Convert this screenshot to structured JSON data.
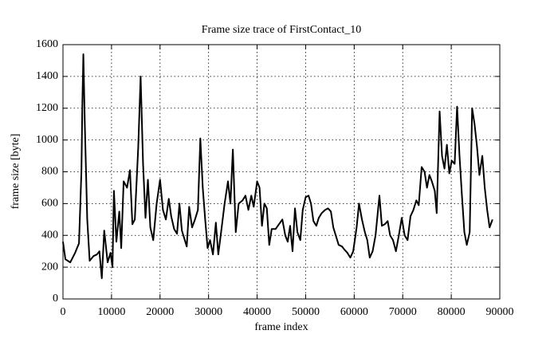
{
  "chart_data": {
    "type": "line",
    "title": "Frame size trace of FirstContact_10",
    "xlabel": "frame index",
    "ylabel": "frame size [byte]",
    "color": "#000000",
    "grid": true,
    "xlim": [
      0,
      90000
    ],
    "xticks": [
      0,
      10000,
      20000,
      30000,
      40000,
      50000,
      60000,
      70000,
      80000,
      90000
    ],
    "ylim": [
      0,
      1600
    ],
    "yticks": [
      0,
      200,
      400,
      600,
      800,
      1000,
      1200,
      1400,
      1600
    ],
    "x": [
      0,
      500,
      1500,
      2500,
      3300,
      3800,
      4000,
      4200,
      4500,
      5000,
      5500,
      6300,
      7000,
      7500,
      8000,
      8500,
      9200,
      9800,
      10200,
      10500,
      11000,
      11600,
      12000,
      12500,
      13200,
      13800,
      14300,
      14800,
      15500,
      16000,
      16500,
      17000,
      17500,
      18000,
      18600,
      19300,
      20000,
      20600,
      21200,
      21800,
      22300,
      22900,
      23500,
      24000,
      24500,
      25000,
      25500,
      26000,
      26600,
      27200,
      27800,
      28300,
      28800,
      29300,
      29800,
      30300,
      30900,
      31500,
      32000,
      32700,
      33300,
      34000,
      34500,
      35000,
      35600,
      36200,
      37000,
      37600,
      38200,
      38800,
      39300,
      40000,
      40500,
      41000,
      41500,
      42000,
      42500,
      43000,
      43800,
      44500,
      45200,
      45800,
      46300,
      46800,
      47300,
      47800,
      48300,
      48900,
      49400,
      50000,
      50600,
      51100,
      51600,
      52200,
      52700,
      53300,
      54000,
      54600,
      55200,
      55700,
      56200,
      56800,
      57500,
      58000,
      58600,
      59200,
      59800,
      60500,
      61000,
      61600,
      62200,
      62700,
      63200,
      63800,
      64400,
      65200,
      65700,
      66300,
      66900,
      67400,
      68000,
      68600,
      69200,
      69800,
      70400,
      71000,
      71600,
      72200,
      72800,
      73300,
      73900,
      74500,
      75000,
      75500,
      76000,
      76600,
      77000,
      77600,
      78100,
      78600,
      79100,
      79600,
      80100,
      80700,
      81200,
      81700,
      82200,
      82700,
      83200,
      83800,
      84300,
      84800,
      85300,
      85800,
      86400,
      86900,
      87400,
      87900,
      88500
    ],
    "values": [
      360,
      250,
      230,
      290,
      350,
      800,
      1240,
      1540,
      1100,
      500,
      240,
      270,
      280,
      300,
      130,
      430,
      230,
      290,
      200,
      680,
      360,
      550,
      320,
      740,
      700,
      810,
      470,
      500,
      950,
      1400,
      850,
      510,
      750,
      450,
      370,
      600,
      750,
      560,
      500,
      630,
      520,
      440,
      410,
      600,
      430,
      380,
      330,
      580,
      450,
      500,
      560,
      1010,
      700,
      500,
      320,
      370,
      280,
      480,
      280,
      450,
      600,
      740,
      600,
      940,
      420,
      600,
      620,
      650,
      560,
      650,
      580,
      740,
      700,
      460,
      600,
      570,
      340,
      440,
      440,
      470,
      500,
      400,
      360,
      460,
      300,
      570,
      420,
      370,
      560,
      640,
      650,
      600,
      490,
      460,
      510,
      540,
      560,
      570,
      550,
      450,
      400,
      340,
      330,
      310,
      290,
      260,
      300,
      450,
      600,
      500,
      420,
      370,
      260,
      300,
      400,
      650,
      460,
      470,
      490,
      400,
      370,
      300,
      400,
      510,
      400,
      370,
      520,
      560,
      620,
      590,
      830,
      800,
      700,
      780,
      740,
      680,
      540,
      1180,
      900,
      820,
      970,
      790,
      870,
      850,
      1210,
      900,
      650,
      420,
      340,
      420,
      1200,
      1100,
      960,
      780,
      900,
      700,
      560,
      450,
      500
    ]
  }
}
